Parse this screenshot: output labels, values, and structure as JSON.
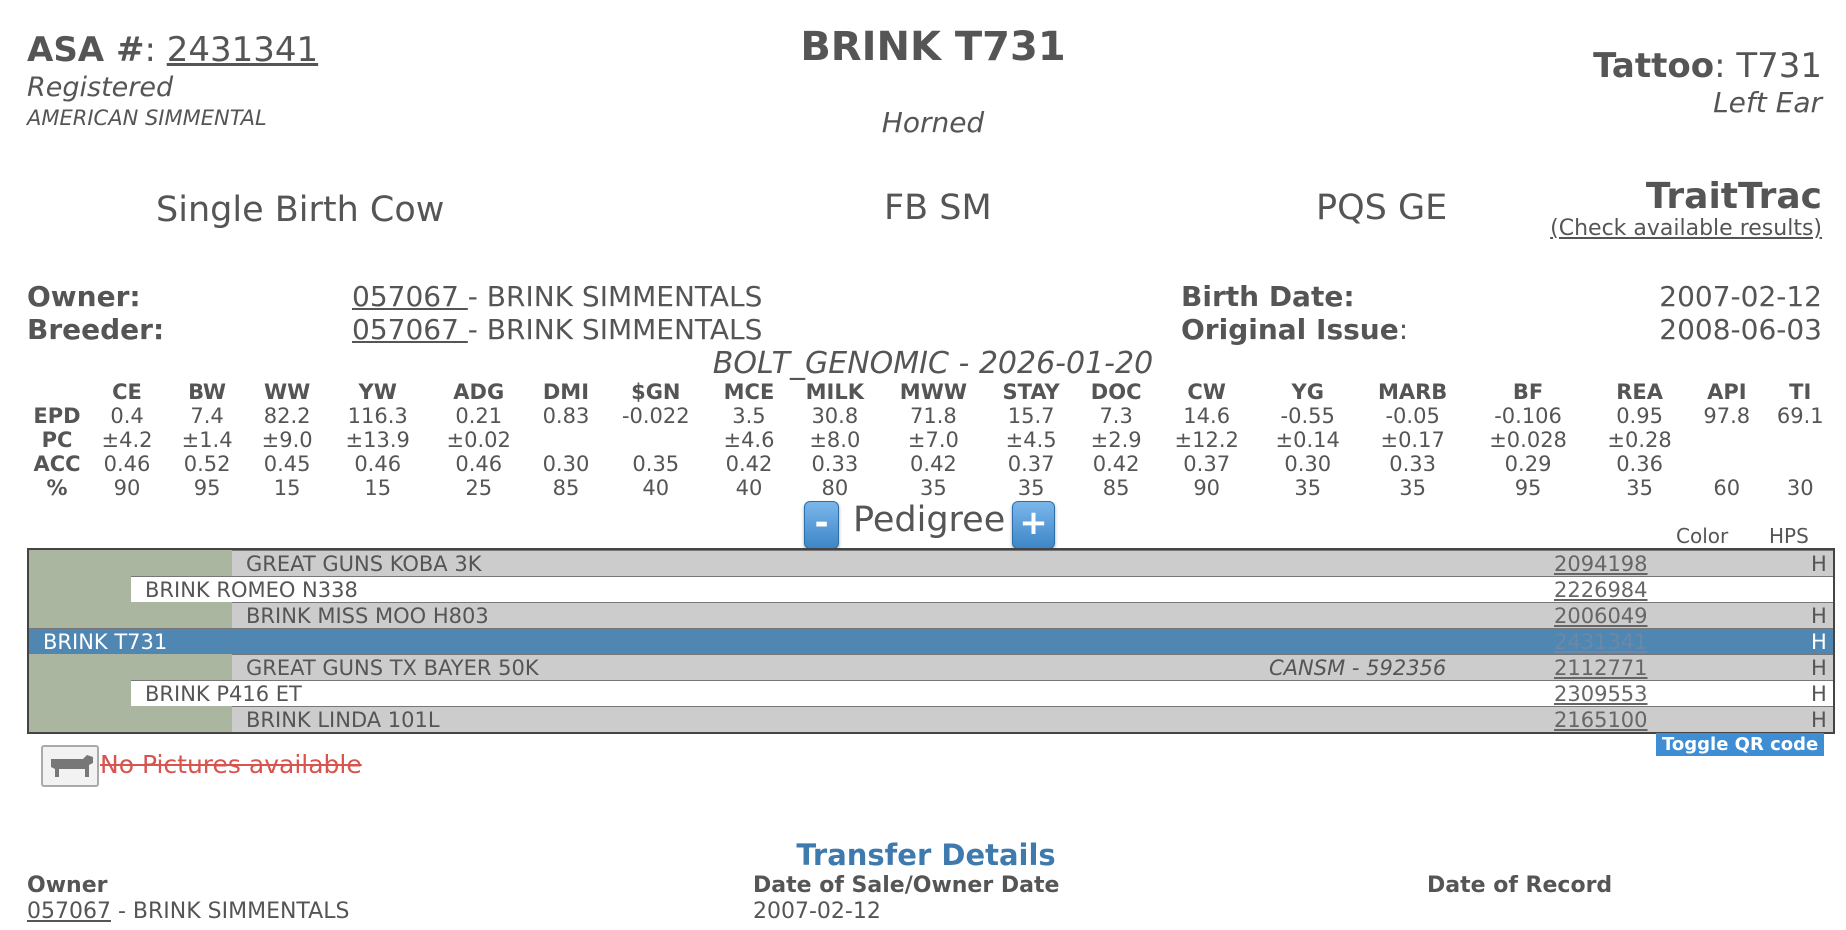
{
  "header": {
    "asa_label": "ASA #",
    "asa_number": "2431341",
    "status": "Registered",
    "breed_association": "AMERICAN SIMMENTAL",
    "animal_name": "BRINK T731",
    "horn_status": "Horned",
    "tattoo_label": "Tattoo",
    "tattoo_value": "T731",
    "tattoo_location": "Left Ear"
  },
  "summary": {
    "birth_type": "Single Birth Cow",
    "breed_code": "FB SM",
    "pqs": "PQS GE",
    "traittrac_title": "TraitTrac",
    "traittrac_link": "(Check available results)"
  },
  "info": {
    "owner_label": "Owner:",
    "owner_id": "057067 ",
    "owner_name": " - BRINK SIMMENTALS",
    "breeder_label": "Breeder:",
    "breeder_id": "057067 ",
    "breeder_name": " - BRINK SIMMENTALS",
    "birth_date_label": "Birth Date:",
    "birth_date": "2007-02-12",
    "original_issue_label": "Original Issue",
    "original_issue": "2008-06-03"
  },
  "epd": {
    "title": "BOLT_GENOMIC - 2026-01-20",
    "columns": [
      "CE",
      "BW",
      "WW",
      "YW",
      "ADG",
      "DMI",
      "$GN",
      "MCE",
      "MILK",
      "MWW",
      "STAY",
      "DOC",
      "CW",
      "YG",
      "MARB",
      "BF",
      "REA",
      "API",
      "TI"
    ],
    "rows": [
      {
        "label": "EPD",
        "values": [
          "0.4",
          "7.4",
          "82.2",
          "116.3",
          "0.21",
          "0.83",
          "-0.022",
          "3.5",
          "30.8",
          "71.8",
          "15.7",
          "7.3",
          "14.6",
          "-0.55",
          "-0.05",
          "-0.106",
          "0.95",
          "97.8",
          "69.1"
        ]
      },
      {
        "label": "PC",
        "values": [
          "±4.2",
          "±1.4",
          "±9.0",
          "±13.9",
          "±0.02",
          "",
          "",
          "±4.6",
          "±8.0",
          "±7.0",
          "±4.5",
          "±2.9",
          "±12.2",
          "±0.14",
          "±0.17",
          "±0.028",
          "±0.28",
          "",
          ""
        ]
      },
      {
        "label": "ACC",
        "values": [
          "0.46",
          "0.52",
          "0.45",
          "0.46",
          "0.46",
          "0.30",
          "0.35",
          "0.42",
          "0.33",
          "0.42",
          "0.37",
          "0.42",
          "0.37",
          "0.30",
          "0.33",
          "0.29",
          "0.36",
          "",
          ""
        ]
      },
      {
        "label": "%",
        "values": [
          "90",
          "95",
          "15",
          "15",
          "25",
          "85",
          "40",
          "40",
          "80",
          "35",
          "35",
          "85",
          "90",
          "35",
          "35",
          "95",
          "35",
          "60",
          "30"
        ]
      }
    ]
  },
  "pedigree": {
    "title": "Pedigree",
    "minus_label": "-",
    "plus_label": "+",
    "color_header": "Color",
    "hps_header": "HPS",
    "rows": [
      {
        "name": "GREAT GUNS KOBA 3K",
        "reg": "2094198",
        "hps": "H",
        "note": ""
      },
      {
        "name": "BRINK ROMEO N338",
        "reg": "2226984",
        "hps": "",
        "note": ""
      },
      {
        "name": "BRINK MISS MOO H803",
        "reg": "2006049",
        "hps": "H",
        "note": ""
      },
      {
        "name": "BRINK T731",
        "reg": "2431341",
        "hps": "H",
        "note": ""
      },
      {
        "name": "GREAT GUNS TX BAYER 50K",
        "reg": "2112771",
        "hps": "H",
        "note": "CANSM - 592356"
      },
      {
        "name": "BRINK P416 ET",
        "reg": "2309553",
        "hps": "H",
        "note": ""
      },
      {
        "name": "BRINK LINDA 101L",
        "reg": "2165100",
        "hps": "H",
        "note": ""
      }
    ]
  },
  "pictures": {
    "qr_toggle": "Toggle QR code",
    "no_pictures": "No Pictures available",
    "icon": "cow-icon"
  },
  "transfer": {
    "title": "Transfer Details",
    "owner_header": "Owner",
    "date_header": "Date of Sale/Owner Date",
    "record_header": "Date of Record",
    "owner_id": "057067",
    "owner_name": " - BRINK SIMMENTALS",
    "sale_date": "2007-02-12"
  },
  "colors": {
    "accent_blue": "#4f86b2",
    "button_blue": "#3f8ed4",
    "title_blue": "#3e7aae",
    "pedigree_green": "#aab6a0",
    "no_pic_red": "#d9534f"
  }
}
